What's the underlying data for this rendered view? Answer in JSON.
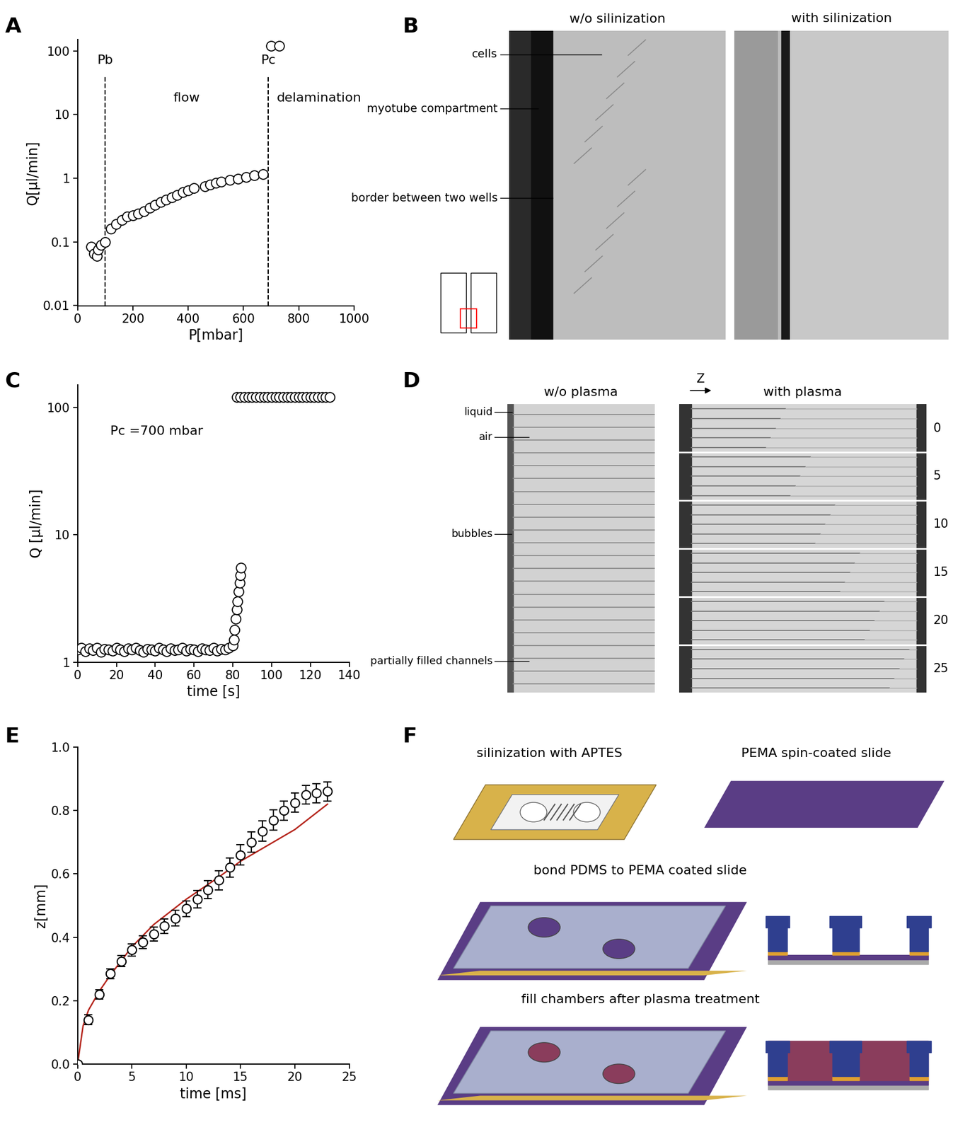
{
  "chart_data": [
    {
      "type": "scatter",
      "log": "y",
      "marker": "o",
      "color": "#ffffff",
      "x": [
        50,
        60,
        70,
        75,
        85,
        100,
        120,
        140,
        160,
        180,
        200,
        220,
        240,
        260,
        280,
        300,
        320,
        340,
        360,
        380,
        400,
        420,
        460,
        480,
        500,
        520,
        550,
        580,
        610,
        640,
        670,
        700,
        730
      ],
      "values": [
        0.085,
        0.065,
        0.06,
        0.075,
        0.09,
        0.1,
        0.16,
        0.19,
        0.22,
        0.25,
        0.26,
        0.28,
        0.3,
        0.34,
        0.38,
        0.42,
        0.46,
        0.5,
        0.55,
        0.6,
        0.65,
        0.7,
        0.75,
        0.8,
        0.85,
        0.88,
        0.93,
        0.98,
        1.05,
        1.1,
        1.15,
        120,
        120
      ],
      "xlim": [
        0,
        1000
      ],
      "xticks": [
        0,
        200,
        400,
        600,
        800,
        1000
      ],
      "ylim": [
        0.01,
        150
      ],
      "yticks": [
        0.01,
        0.1,
        1,
        10,
        100
      ],
      "x_label": "P[mbar]",
      "y_label": "Q[µl/min]",
      "vlines": [
        {
          "x": 100,
          "label": "Pb"
        },
        {
          "x": 690,
          "label": "Pc"
        }
      ],
      "annotations": [
        "flow",
        "delamination"
      ]
    },
    {
      "type": "scatter",
      "log": "y",
      "marker": "o",
      "color": "#ffffff",
      "x": [
        0,
        2,
        4,
        6,
        8,
        10,
        12,
        14,
        16,
        18,
        20,
        22,
        24,
        26,
        28,
        30,
        32,
        34,
        36,
        38,
        40,
        42,
        44,
        46,
        48,
        50,
        52,
        54,
        56,
        58,
        60,
        62,
        64,
        66,
        68,
        70,
        72,
        74,
        76,
        78,
        80,
        80.5,
        81,
        81.5,
        82,
        82.5,
        83,
        83.5,
        84,
        84.3,
        82,
        84,
        86,
        88,
        90,
        92,
        94,
        96,
        98,
        100,
        102,
        104,
        106,
        108,
        110,
        112,
        114,
        116,
        118,
        120,
        122,
        124,
        126,
        128,
        130
      ],
      "values": [
        1.25,
        1.3,
        1.22,
        1.28,
        1.24,
        1.3,
        1.2,
        1.27,
        1.25,
        1.23,
        1.29,
        1.26,
        1.22,
        1.28,
        1.25,
        1.3,
        1.24,
        1.21,
        1.27,
        1.26,
        1.23,
        1.29,
        1.25,
        1.22,
        1.28,
        1.24,
        1.26,
        1.3,
        1.23,
        1.27,
        1.25,
        1.22,
        1.28,
        1.26,
        1.24,
        1.29,
        1.23,
        1.27,
        1.25,
        1.3,
        1.35,
        1.5,
        1.8,
        2.2,
        2.6,
        3.0,
        3.6,
        4.2,
        4.8,
        5.5,
        120,
        120,
        120,
        120,
        120,
        120,
        120,
        120,
        120,
        120,
        120,
        120,
        120,
        120,
        120,
        120,
        120,
        120,
        120,
        120,
        120,
        120,
        120,
        120,
        120
      ],
      "xlim": [
        0,
        140
      ],
      "xticks": [
        0,
        20,
        40,
        60,
        80,
        100,
        120,
        140
      ],
      "ylim": [
        1,
        150
      ],
      "yticks": [
        1,
        10,
        100
      ],
      "x_label": "time [s]",
      "y_label": "Q [µl/min]",
      "annotations": [
        "Pc =700 mbar"
      ]
    },
    {
      "type": "scatter",
      "series": [
        {
          "type": "scatter",
          "marker": "o",
          "color": "#ffffff",
          "x": [
            0,
            1,
            2,
            3,
            4,
            5,
            6,
            7,
            8,
            9,
            10,
            11,
            12,
            13,
            14,
            15,
            16,
            17,
            18,
            19,
            20,
            21,
            22,
            23
          ],
          "values": [
            0,
            0.14,
            0.22,
            0.285,
            0.325,
            0.36,
            0.385,
            0.41,
            0.435,
            0.46,
            0.49,
            0.52,
            0.55,
            0.58,
            0.62,
            0.66,
            0.7,
            0.735,
            0.77,
            0.8,
            0.825,
            0.85,
            0.855,
            0.86
          ],
          "errors": [
            0,
            0.015,
            0.015,
            0.015,
            0.018,
            0.02,
            0.02,
            0.022,
            0.022,
            0.025,
            0.025,
            0.028,
            0.028,
            0.03,
            0.03,
            0.032,
            0.032,
            0.032,
            0.032,
            0.03,
            0.03,
            0.03,
            0.03,
            0.03
          ]
        },
        {
          "type": "line",
          "color": "#b5251c",
          "x": [
            0,
            0.5,
            1,
            2,
            3,
            5,
            7,
            10,
            13,
            15,
            18,
            20,
            23
          ],
          "values": [
            0,
            0.12,
            0.17,
            0.23,
            0.28,
            0.37,
            0.44,
            0.52,
            0.59,
            0.64,
            0.7,
            0.74,
            0.82
          ]
        }
      ],
      "xlim": [
        0,
        25
      ],
      "xticks": [
        0,
        5,
        10,
        15,
        20,
        25
      ],
      "ylim": [
        0,
        1.0
      ],
      "yticks": [
        {
          "value": 0,
          "label": "0.0"
        },
        0.2,
        0.4,
        0.6,
        0.8,
        {
          "value": 1.0,
          "label": "1.0"
        }
      ],
      "x_label": "time [ms]",
      "y_label": "z[mm]"
    }
  ],
  "panel_labels": [
    "A",
    "B",
    "C",
    "D",
    "E",
    "F"
  ],
  "panels": {
    "B": {
      "titles": [
        "w/o silinization",
        "with silinization"
      ],
      "labels": [
        "cells",
        "myotube compartment",
        "border between two wells"
      ]
    },
    "D": {
      "titles": [
        "w/o plasma",
        "with plasma"
      ],
      "axis_label": "Z",
      "labels": [
        "liquid",
        "air",
        "bubbles",
        "partially filled channels"
      ],
      "numbers": [
        0,
        5,
        10,
        15,
        20,
        25
      ]
    },
    "F": {
      "steps": [
        "silinization with APTES",
        "PEMA spin-coated slide",
        "bond PDMS to PEMA coated slide",
        "fill chambers after plasma treatment"
      ]
    }
  }
}
